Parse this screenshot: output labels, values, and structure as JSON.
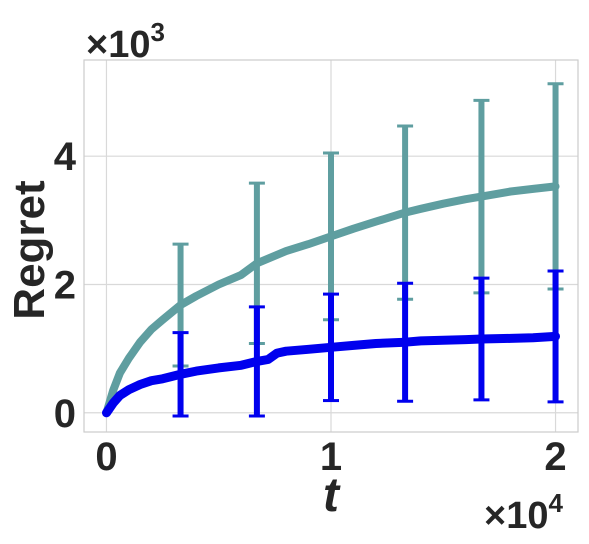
{
  "chart_data": {
    "type": "line",
    "xlabel": "t",
    "ylabel": "Regret",
    "x_multiplier": {
      "base": "×10",
      "exponent": "4"
    },
    "y_multiplier": {
      "base": "×10",
      "exponent": "3"
    },
    "xlim": [
      -0.1,
      2.1
    ],
    "ylim": [
      -0.3,
      5.5
    ],
    "xticks": [
      0,
      1,
      2
    ],
    "xtick_labels": [
      "0",
      "1",
      "2"
    ],
    "yticks": [
      0,
      2,
      4
    ],
    "ytick_labels": [
      "0",
      "2",
      "4"
    ],
    "grid": true,
    "legend": "none",
    "series": [
      {
        "color": "#5f9ea0",
        "x": [
          0,
          0.03,
          0.06,
          0.1,
          0.15,
          0.2,
          0.25,
          0.33,
          0.4,
          0.5,
          0.6,
          0.67,
          0.8,
          0.9,
          1.0,
          1.1,
          1.2,
          1.33,
          1.4,
          1.5,
          1.6,
          1.67,
          1.8,
          1.9,
          2.0
        ],
        "y": [
          0,
          0.35,
          0.62,
          0.85,
          1.1,
          1.3,
          1.45,
          1.68,
          1.82,
          2.0,
          2.15,
          2.33,
          2.52,
          2.63,
          2.75,
          2.87,
          2.98,
          3.12,
          3.18,
          3.26,
          3.33,
          3.37,
          3.45,
          3.49,
          3.53
        ],
        "errorbars": [
          {
            "x": 0.33,
            "y": 1.68,
            "err": 0.95
          },
          {
            "x": 0.67,
            "y": 2.33,
            "err": 1.25
          },
          {
            "x": 1.0,
            "y": 2.75,
            "err": 1.3
          },
          {
            "x": 1.33,
            "y": 3.12,
            "err": 1.35
          },
          {
            "x": 1.67,
            "y": 3.37,
            "err": 1.5
          },
          {
            "x": 2.0,
            "y": 3.53,
            "err": 1.6
          }
        ]
      },
      {
        "color": "#0000ee",
        "x": [
          0,
          0.03,
          0.06,
          0.1,
          0.15,
          0.2,
          0.25,
          0.33,
          0.4,
          0.5,
          0.6,
          0.67,
          0.72,
          0.76,
          0.8,
          0.9,
          1.0,
          1.1,
          1.2,
          1.33,
          1.4,
          1.5,
          1.6,
          1.67,
          1.8,
          1.9,
          2.0
        ],
        "y": [
          0,
          0.15,
          0.27,
          0.36,
          0.44,
          0.5,
          0.53,
          0.6,
          0.65,
          0.7,
          0.74,
          0.8,
          0.83,
          0.93,
          0.96,
          0.99,
          1.02,
          1.05,
          1.08,
          1.1,
          1.12,
          1.13,
          1.14,
          1.15,
          1.16,
          1.17,
          1.19
        ]
      }
    ],
    "blue_errorbars": [
      {
        "x": 0.33,
        "y": 0.6,
        "err": 0.65
      },
      {
        "x": 0.67,
        "y": 0.8,
        "err": 0.85
      },
      {
        "x": 1.0,
        "y": 1.02,
        "err": 0.83
      },
      {
        "x": 1.33,
        "y": 1.1,
        "err": 0.92
      },
      {
        "x": 1.67,
        "y": 1.15,
        "err": 0.95
      },
      {
        "x": 2.0,
        "y": 1.19,
        "err": 1.02
      }
    ]
  }
}
